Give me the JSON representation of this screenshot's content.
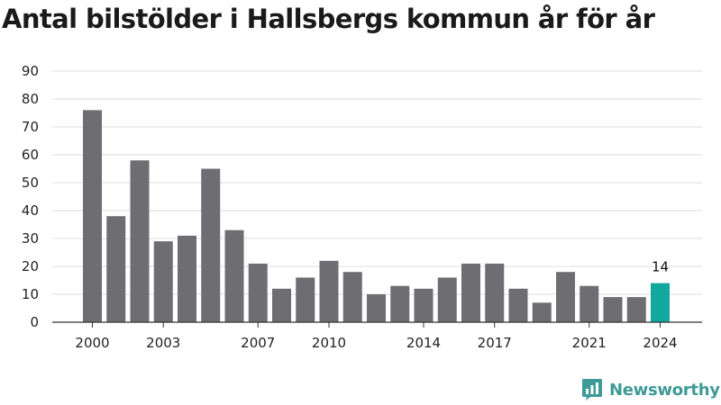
{
  "chart_data": {
    "type": "bar",
    "title": "Antal bilstölder i Hallsbergs kommun år för år",
    "xlabel": "",
    "ylabel": "",
    "categories": [
      "2000",
      "2001",
      "2002",
      "2003",
      "2004",
      "2005",
      "2006",
      "2007",
      "2008",
      "2009",
      "2010",
      "2011",
      "2012",
      "2013",
      "2014",
      "2015",
      "2016",
      "2017",
      "2018",
      "2019",
      "2020",
      "2021",
      "2022",
      "2023",
      "2024"
    ],
    "values": [
      76,
      38,
      58,
      29,
      31,
      55,
      33,
      21,
      12,
      16,
      22,
      18,
      10,
      13,
      12,
      16,
      21,
      21,
      12,
      7,
      18,
      13,
      9,
      9,
      14
    ],
    "x_tick_labels": [
      "2000",
      "2003",
      "2007",
      "2010",
      "2014",
      "2017",
      "2021",
      "2024"
    ],
    "y_ticks": [
      0,
      10,
      20,
      30,
      40,
      50,
      60,
      70,
      80,
      90
    ],
    "ylim": [
      0,
      90
    ],
    "grid": "horizontal",
    "highlight": {
      "category": "2024",
      "label": "14"
    },
    "colors": {
      "bar": "#6e6d72",
      "highlight": "#13a89e",
      "grid": "#dcdcdc",
      "axis": "#333333"
    }
  },
  "brand": {
    "name": "Newsworthy",
    "icon": "newsworthy-logo-icon",
    "color": "#3d9a95"
  }
}
